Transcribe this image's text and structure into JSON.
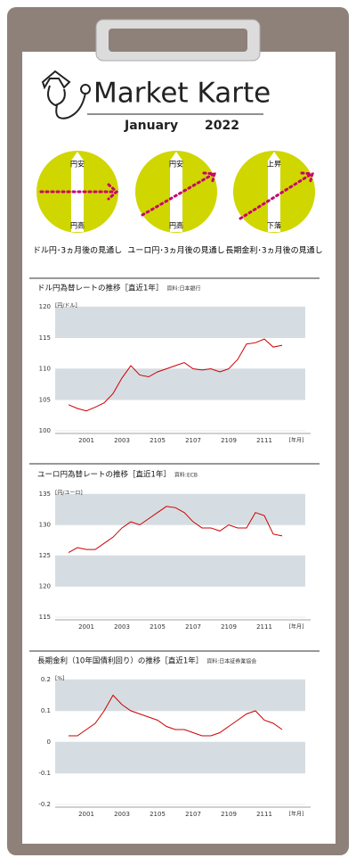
{
  "header": {
    "title": "Market Karte",
    "month": "January",
    "year": "2022"
  },
  "outlooks": [
    {
      "top": "円安",
      "bottom": "円高",
      "caption": "ドル円･3ヵ月後の見通し"
    },
    {
      "top": "円安",
      "bottom": "円高",
      "caption": "ユーロ円･3ヵ月後の見通し"
    },
    {
      "top": "上昇",
      "bottom": "下落",
      "caption": "長期金利･3ヵ月後の見通し"
    }
  ],
  "chart_data": [
    {
      "type": "line",
      "title": "ドル円為替レートの推移［直近1年］",
      "source": "資料:日本銀行",
      "y_unit": "[円/ドル]",
      "x_unit": "[年月]",
      "categories": [
        null,
        null,
        "2001",
        null,
        null,
        null,
        "2003",
        null,
        null,
        null,
        "2105",
        null,
        null,
        null,
        "2107",
        null,
        null,
        null,
        "2109",
        null,
        null,
        null,
        "2111",
        null,
        null
      ],
      "values": [
        104.2,
        103.6,
        103.2,
        103.8,
        104.5,
        106,
        108.5,
        110.5,
        109,
        108.7,
        109.5,
        110,
        110.5,
        111,
        110,
        109.8,
        110,
        109.5,
        110,
        111.5,
        114,
        114.2,
        114.8,
        113.5,
        113.8
      ],
      "color": "#cc0000",
      "ylim": [
        100,
        120
      ],
      "yticks": [
        100,
        105,
        110,
        115,
        120
      ],
      "grid": true
    },
    {
      "type": "line",
      "title": "ユーロ円為替レートの推移［直近1年］",
      "source": "資料:ECB",
      "y_unit": "[円/ユーロ]",
      "x_unit": "[年月]",
      "categories": [
        null,
        null,
        "2001",
        null,
        null,
        null,
        "2003",
        null,
        null,
        null,
        "2105",
        null,
        null,
        null,
        "2107",
        null,
        null,
        null,
        "2109",
        null,
        null,
        null,
        "2111",
        null,
        null
      ],
      "values": [
        125.5,
        126.3,
        126,
        126,
        127,
        128,
        129.5,
        130.5,
        130,
        131,
        132,
        133,
        132.8,
        132,
        130.5,
        129.5,
        129.5,
        129,
        130,
        129.5,
        129.5,
        132,
        131.5,
        128.5,
        128.2
      ],
      "color": "#cc0000",
      "ylim": [
        115,
        135
      ],
      "yticks": [
        115,
        120,
        125,
        130,
        135
      ],
      "grid": true
    },
    {
      "type": "line",
      "title": "長期金利（10年国債利回り）の推移［直近1年］",
      "source": "資料:日本証券業協会",
      "y_unit": "[%]",
      "x_unit": "[年月]",
      "categories": [
        null,
        null,
        "2001",
        null,
        null,
        null,
        "2003",
        null,
        null,
        null,
        "2105",
        null,
        null,
        null,
        "2107",
        null,
        null,
        null,
        "2109",
        null,
        null,
        null,
        "2111",
        null,
        null
      ],
      "values": [
        0.02,
        0.02,
        0.04,
        0.06,
        0.1,
        0.15,
        0.12,
        0.1,
        0.09,
        0.08,
        0.07,
        0.05,
        0.04,
        0.04,
        0.03,
        0.02,
        0.02,
        0.03,
        0.05,
        0.07,
        0.09,
        0.1,
        0.07,
        0.06,
        0.04
      ],
      "color": "#cc0000",
      "ylim": [
        -0.2,
        0.2
      ],
      "yticks": [
        -0.2,
        -0.1,
        0,
        0.1,
        0.2
      ],
      "grid": true
    }
  ]
}
